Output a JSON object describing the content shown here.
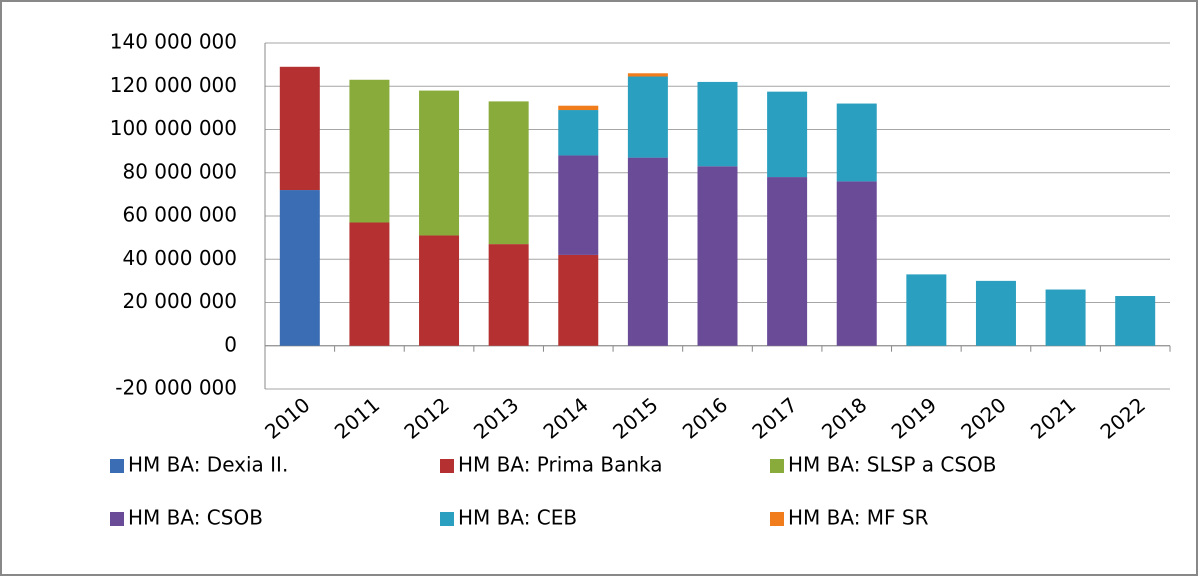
{
  "chart_data": {
    "type": "stacked_bar",
    "categories": [
      "2010",
      "2011",
      "2012",
      "2013",
      "2014",
      "2015",
      "2016",
      "2017",
      "2018",
      "2019",
      "2020",
      "2021",
      "2022"
    ],
    "series": [
      {
        "name": "HM BA: Dexia II.",
        "color": "#3a6db3",
        "values": [
          72000000,
          null,
          null,
          null,
          null,
          null,
          null,
          null,
          null,
          null,
          null,
          null,
          null
        ]
      },
      {
        "name": "HM BA: Prima Banka",
        "color": "#b53030",
        "values": [
          57000000,
          57000000,
          51000000,
          47000000,
          42000000,
          null,
          null,
          null,
          null,
          null,
          null,
          null,
          null
        ]
      },
      {
        "name": "HM BA: SLSP a CSOB",
        "color": "#88ab3c",
        "values": [
          null,
          66000000,
          67000000,
          66000000,
          null,
          null,
          null,
          null,
          null,
          null,
          null,
          null,
          null
        ]
      },
      {
        "name": "HM BA: CSOB",
        "color": "#6a4b98",
        "values": [
          null,
          null,
          null,
          null,
          46000000,
          87000000,
          83000000,
          78000000,
          76000000,
          null,
          null,
          null,
          null
        ]
      },
      {
        "name": "HM BA: CEB",
        "color": "#2a9fbf",
        "values": [
          null,
          null,
          null,
          null,
          21000000,
          37500000,
          39000000,
          39500000,
          36000000,
          33000000,
          30000000,
          26000000,
          23000000
        ]
      },
      {
        "name": "HM BA: MF SR",
        "color": "#f07c1c",
        "values": [
          null,
          null,
          null,
          null,
          2000000,
          1500000,
          null,
          null,
          null,
          null,
          null,
          null,
          null
        ]
      }
    ],
    "ylim": [
      -20000000,
      140000000
    ],
    "yticks": [
      {
        "value": -20000000,
        "label": "-20 000 000"
      },
      0,
      {
        "value": 20000000,
        "label": "20 000 000"
      },
      {
        "value": 40000000,
        "label": "40 000 000"
      },
      {
        "value": 60000000,
        "label": "60 000 000"
      },
      {
        "value": 80000000,
        "label": "80 000 000"
      },
      {
        "value": 100000000,
        "label": "100 000 000"
      },
      {
        "value": 120000000,
        "label": "120 000 000"
      },
      {
        "value": 140000000,
        "label": "140 000 000"
      }
    ],
    "grid": true,
    "legend": "bottom"
  }
}
